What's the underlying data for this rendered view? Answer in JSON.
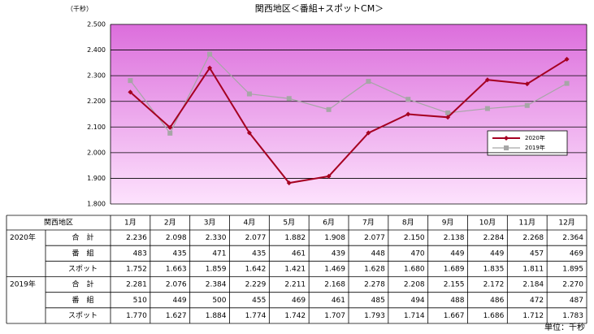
{
  "chart_data": {
    "type": "line",
    "title": "関西地区＜番組+スポットCM＞",
    "y_unit": "（千秒）",
    "categories": [
      "1月",
      "2月",
      "3月",
      "4月",
      "5月",
      "6月",
      "7月",
      "8月",
      "9月",
      "10月",
      "11月",
      "12月"
    ],
    "series": [
      {
        "name": "2020年",
        "color": "#a50021",
        "marker": "diamond",
        "values": [
          2236,
          2098,
          2330,
          2077,
          1882,
          1908,
          2077,
          2150,
          2138,
          2284,
          2268,
          2364
        ],
        "value_labels": [
          "2.236",
          "2.098",
          "2.330",
          "2.077",
          "1.882",
          "1.908",
          "2.077",
          "2.150",
          "2.138",
          "2.284",
          "2.268",
          "2.364"
        ]
      },
      {
        "name": "2019年",
        "color": "#a6a6a6",
        "marker": "square",
        "values": [
          2281,
          2076,
          2384,
          2229,
          2211,
          2168,
          2278,
          2208,
          2155,
          2172,
          2184,
          2270
        ],
        "value_labels": [
          "2.281",
          "2.076",
          "2.384",
          "2.229",
          "2.211",
          "2.168",
          "2.278",
          "2.208",
          "2.155",
          "2.172",
          "2.184",
          "2.270"
        ]
      }
    ],
    "ylim": [
      1800,
      2500
    ],
    "yticks": [
      {
        "value": 1800,
        "label": "1.800"
      },
      {
        "value": 1900,
        "label": "1.900"
      },
      {
        "value": 2000,
        "label": "2.000"
      },
      {
        "value": 2100,
        "label": "2.100"
      },
      {
        "value": 2200,
        "label": "2.200"
      },
      {
        "value": 2300,
        "label": "2.300"
      },
      {
        "value": 2400,
        "label": "2.400"
      },
      {
        "value": 2500,
        "label": "2.500"
      }
    ],
    "grid": true,
    "legend": "right"
  },
  "table": {
    "corner": "関西地区",
    "row_labels": [
      "合　計",
      "番　組",
      "スポット"
    ],
    "groups": [
      {
        "program": [
          "483",
          "435",
          "471",
          "435",
          "461",
          "439",
          "448",
          "470",
          "449",
          "449",
          "457",
          "469"
        ],
        "spot": [
          "1.752",
          "1.663",
          "1.859",
          "1.642",
          "1.421",
          "1.469",
          "1.628",
          "1.680",
          "1.689",
          "1.835",
          "1.811",
          "1.895"
        ]
      },
      {
        "program": [
          "510",
          "449",
          "500",
          "455",
          "469",
          "461",
          "485",
          "494",
          "488",
          "486",
          "472",
          "487"
        ],
        "spot": [
          "1.770",
          "1.627",
          "1.884",
          "1.774",
          "1.742",
          "1.707",
          "1.793",
          "1.714",
          "1.667",
          "1.686",
          "1.712",
          "1.783"
        ]
      }
    ]
  },
  "footer": "単位：千秒"
}
